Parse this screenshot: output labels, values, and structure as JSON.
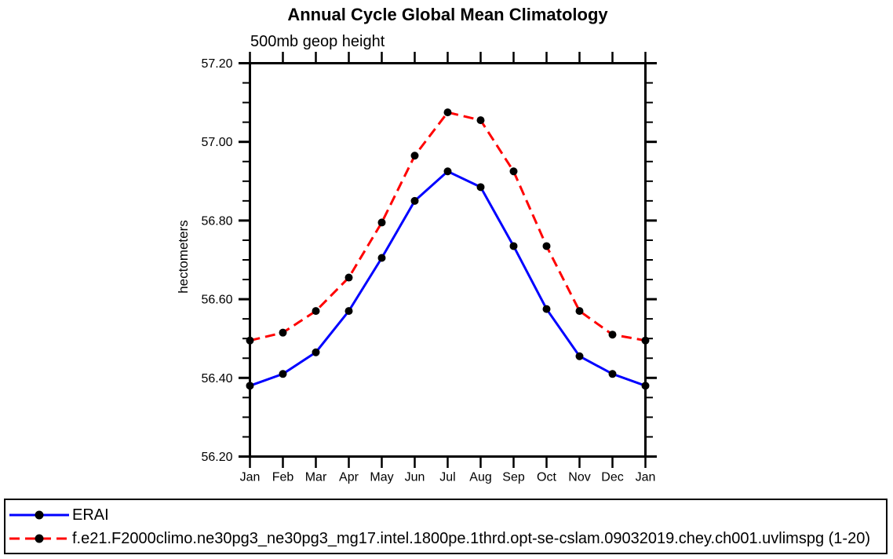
{
  "window": {
    "background": "#ffffff"
  },
  "chart_data": {
    "type": "line",
    "title": "Annual Cycle Global Mean Climatology",
    "subtitle": "500mb geop height",
    "ylabel": "hectometers",
    "xlabel": "",
    "categories": [
      "Jan",
      "Feb",
      "Mar",
      "Apr",
      "May",
      "Jun",
      "Jul",
      "Aug",
      "Sep",
      "Oct",
      "Nov",
      "Dec",
      "Jan"
    ],
    "ylim": [
      56.2,
      57.2
    ],
    "ytick_major": 0.2,
    "ytick_minor": 0.05,
    "grid": false,
    "axis_color": "#000000",
    "marker_color": "#000000",
    "legend_position": "bottom-left-box",
    "series": [
      {
        "name": "ERAI",
        "color": "#0000ff",
        "line_style": "solid",
        "marker": "circle",
        "values": [
          56.38,
          56.41,
          56.465,
          56.57,
          56.705,
          56.85,
          56.925,
          56.885,
          56.735,
          56.575,
          56.455,
          56.41,
          56.38
        ]
      },
      {
        "name": "f.e21.F2000climo.ne30pg3_ne30pg3_mg17.intel.1800pe.1thrd.opt-se-cslam.09032019.chey.ch001.uvlimspg (1-20)",
        "color": "#ff0000",
        "line_style": "dashed",
        "marker": "circle",
        "values": [
          56.495,
          56.515,
          56.57,
          56.655,
          56.795,
          56.965,
          57.075,
          57.055,
          56.925,
          56.735,
          56.57,
          56.51,
          56.495
        ]
      }
    ]
  }
}
